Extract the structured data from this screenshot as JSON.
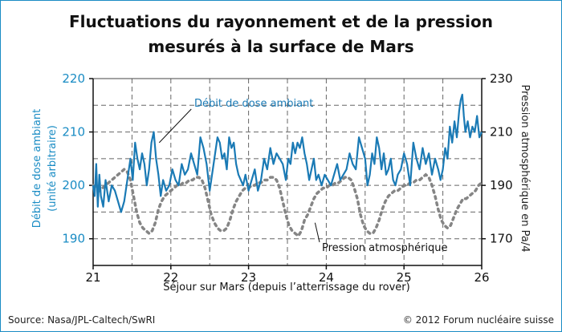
{
  "chart_data": {
    "type": "line",
    "title_lines": [
      "Fluctuations du rayonnement et de la pression",
      "mesurés à la surface de Mars"
    ],
    "xlabel": "Séjour sur Mars (depuis l’atterrissage du rover)",
    "ylabel_left_lines": [
      "Débit de dose ambiant",
      "(unité arbitraire)"
    ],
    "ylabel_right": "Pression atmosphérique en Pa/4",
    "xlim": [
      21,
      26
    ],
    "ylim_left": [
      185,
      220
    ],
    "ylim_right": [
      160,
      230
    ],
    "x_ticks": [
      "21",
      "22",
      "23",
      "24",
      "25",
      "26"
    ],
    "y_left_ticks": [
      "190",
      "200",
      "210",
      "220"
    ],
    "y_right_ticks": [
      "170",
      "190",
      "210",
      "230"
    ],
    "grid": true,
    "colors": {
      "dose": "#1a7ab5",
      "pressure": "#858585",
      "axis_left": "#1a8cc4",
      "frame": "#1a8cc4"
    },
    "series": [
      {
        "name": "Débit de dose ambiant",
        "axis": "left",
        "x": [
          21.0,
          21.02,
          21.04,
          21.06,
          21.08,
          21.1,
          21.13,
          21.16,
          21.2,
          21.24,
          21.28,
          21.32,
          21.36,
          21.4,
          21.44,
          21.48,
          21.51,
          21.54,
          21.57,
          21.6,
          21.63,
          21.66,
          21.69,
          21.72,
          21.75,
          21.78,
          21.81,
          21.84,
          21.87,
          21.9,
          21.94,
          21.98,
          22.02,
          22.06,
          22.1,
          22.14,
          22.18,
          22.22,
          22.26,
          22.3,
          22.34,
          22.38,
          22.42,
          22.46,
          22.5,
          22.54,
          22.57,
          22.6,
          22.63,
          22.66,
          22.69,
          22.72,
          22.75,
          22.78,
          22.81,
          22.84,
          22.87,
          22.9,
          22.93,
          22.96,
          23.0,
          23.04,
          23.08,
          23.12,
          23.16,
          23.2,
          23.24,
          23.28,
          23.32,
          23.36,
          23.4,
          23.44,
          23.48,
          23.51,
          23.54,
          23.57,
          23.6,
          23.63,
          23.66,
          23.69,
          23.72,
          23.75,
          23.78,
          23.81,
          23.84,
          23.87,
          23.9,
          23.94,
          23.98,
          24.02,
          24.06,
          24.1,
          24.14,
          24.18,
          24.22,
          24.26,
          24.3,
          24.34,
          24.38,
          24.42,
          24.46,
          24.5,
          24.53,
          24.56,
          24.59,
          24.62,
          24.65,
          24.68,
          24.71,
          24.74,
          24.77,
          24.8,
          24.83,
          24.86,
          24.89,
          24.92,
          24.96,
          25.0,
          25.04,
          25.08,
          25.12,
          25.16,
          25.2,
          25.24,
          25.28,
          25.32,
          25.36,
          25.4,
          25.44,
          25.47,
          25.5,
          25.53,
          25.56,
          25.59,
          25.62,
          25.65,
          25.68,
          25.71,
          25.73,
          25.75,
          25.77,
          25.79,
          25.82,
          25.85,
          25.88,
          25.91,
          25.94,
          25.97,
          26.0
        ],
        "values": [
          200,
          198,
          204,
          196,
          202,
          198,
          196,
          201,
          197,
          200,
          199,
          197,
          195,
          197,
          201,
          205,
          201,
          208,
          205,
          203,
          206,
          204,
          200,
          203,
          208,
          210,
          205,
          202,
          198,
          201,
          199,
          200,
          203,
          201,
          200,
          204,
          202,
          203,
          206,
          204,
          202,
          209,
          207,
          204,
          199,
          203,
          206,
          209,
          208,
          205,
          206,
          203,
          209,
          207,
          208,
          204,
          202,
          201,
          200,
          202,
          199,
          201,
          203,
          199,
          201,
          205,
          203,
          207,
          204,
          206,
          205,
          204,
          201,
          205,
          204,
          208,
          206,
          208,
          207,
          209,
          206,
          204,
          201,
          203,
          205,
          201,
          202,
          200,
          202,
          201,
          200,
          202,
          204,
          201,
          202,
          203,
          206,
          204,
          203,
          209,
          207,
          205,
          200,
          202,
          206,
          204,
          209,
          207,
          203,
          206,
          202,
          203,
          205,
          201,
          200,
          202,
          203,
          206,
          204,
          200,
          208,
          205,
          203,
          207,
          204,
          206,
          202,
          205,
          203,
          201,
          203,
          207,
          205,
          211,
          208,
          212,
          209,
          214,
          216,
          217,
          213,
          210,
          212,
          209,
          211,
          210,
          213,
          209,
          210
        ],
        "annotation": {
          "text": "Débit de dose ambiant",
          "x": 21.85,
          "y": 208
        }
      },
      {
        "name": "Pression atmosphérique",
        "axis": "right",
        "x": [
          21.0,
          21.04,
          21.08,
          21.12,
          21.16,
          21.2,
          21.24,
          21.28,
          21.32,
          21.36,
          21.4,
          21.44,
          21.48,
          21.52,
          21.56,
          21.6,
          21.64,
          21.68,
          21.72,
          21.76,
          21.8,
          21.84,
          21.88,
          21.92,
          21.96,
          22.0,
          22.04,
          22.08,
          22.12,
          22.16,
          22.2,
          22.24,
          22.28,
          22.32,
          22.36,
          22.4,
          22.44,
          22.48,
          22.52,
          22.56,
          22.6,
          22.64,
          22.68,
          22.72,
          22.76,
          22.8,
          22.84,
          22.88,
          22.92,
          22.96,
          23.0,
          23.04,
          23.08,
          23.12,
          23.16,
          23.2,
          23.24,
          23.28,
          23.32,
          23.36,
          23.4,
          23.44,
          23.48,
          23.52,
          23.56,
          23.6,
          23.64,
          23.68,
          23.72,
          23.76,
          23.8,
          23.84,
          23.88,
          23.92,
          23.96,
          24.0,
          24.04,
          24.08,
          24.12,
          24.16,
          24.2,
          24.24,
          24.28,
          24.32,
          24.36,
          24.4,
          24.44,
          24.48,
          24.52,
          24.56,
          24.6,
          24.64,
          24.68,
          24.72,
          24.76,
          24.8,
          24.84,
          24.88,
          24.92,
          24.96,
          25.0,
          25.04,
          25.08,
          25.12,
          25.16,
          25.2,
          25.24,
          25.28,
          25.32,
          25.36,
          25.4,
          25.44,
          25.48,
          25.52,
          25.56,
          25.6,
          25.64,
          25.68,
          25.72,
          25.76,
          25.8,
          25.84,
          25.88,
          25.92,
          25.96,
          26.0
        ],
        "values": [
          190,
          189,
          188,
          189,
          190,
          191,
          192,
          193,
          194,
          195,
          196,
          195,
          192,
          186,
          180,
          176,
          174,
          173,
          172,
          173,
          176,
          181,
          184,
          186,
          187,
          188,
          189,
          190,
          190,
          191,
          191,
          192,
          192,
          193,
          193,
          192,
          189,
          184,
          179,
          176,
          174,
          173,
          173,
          174,
          177,
          181,
          184,
          186,
          188,
          189,
          189,
          190,
          190,
          191,
          191,
          192,
          192,
          193,
          193,
          192,
          189,
          184,
          179,
          175,
          173,
          172,
          171,
          173,
          177,
          179,
          182,
          185,
          187,
          188,
          189,
          189,
          190,
          190,
          191,
          191,
          192,
          193,
          193,
          192,
          189,
          185,
          179,
          175,
          173,
          172,
          172,
          174,
          177,
          181,
          184,
          186,
          187,
          188,
          188,
          189,
          190,
          190,
          191,
          191,
          192,
          192,
          193,
          194,
          193,
          190,
          186,
          181,
          177,
          175,
          174,
          175,
          178,
          181,
          183,
          185,
          185,
          186,
          187,
          188,
          190,
          191
        ],
        "annotation": {
          "text": "Pression atmosphérique",
          "x": 24.0,
          "y": 170
        }
      }
    ]
  },
  "footer": {
    "source": "Source: Nasa/JPL-Caltech/SwRI",
    "copyright": "© 2012 Forum nucléaire suisse"
  }
}
